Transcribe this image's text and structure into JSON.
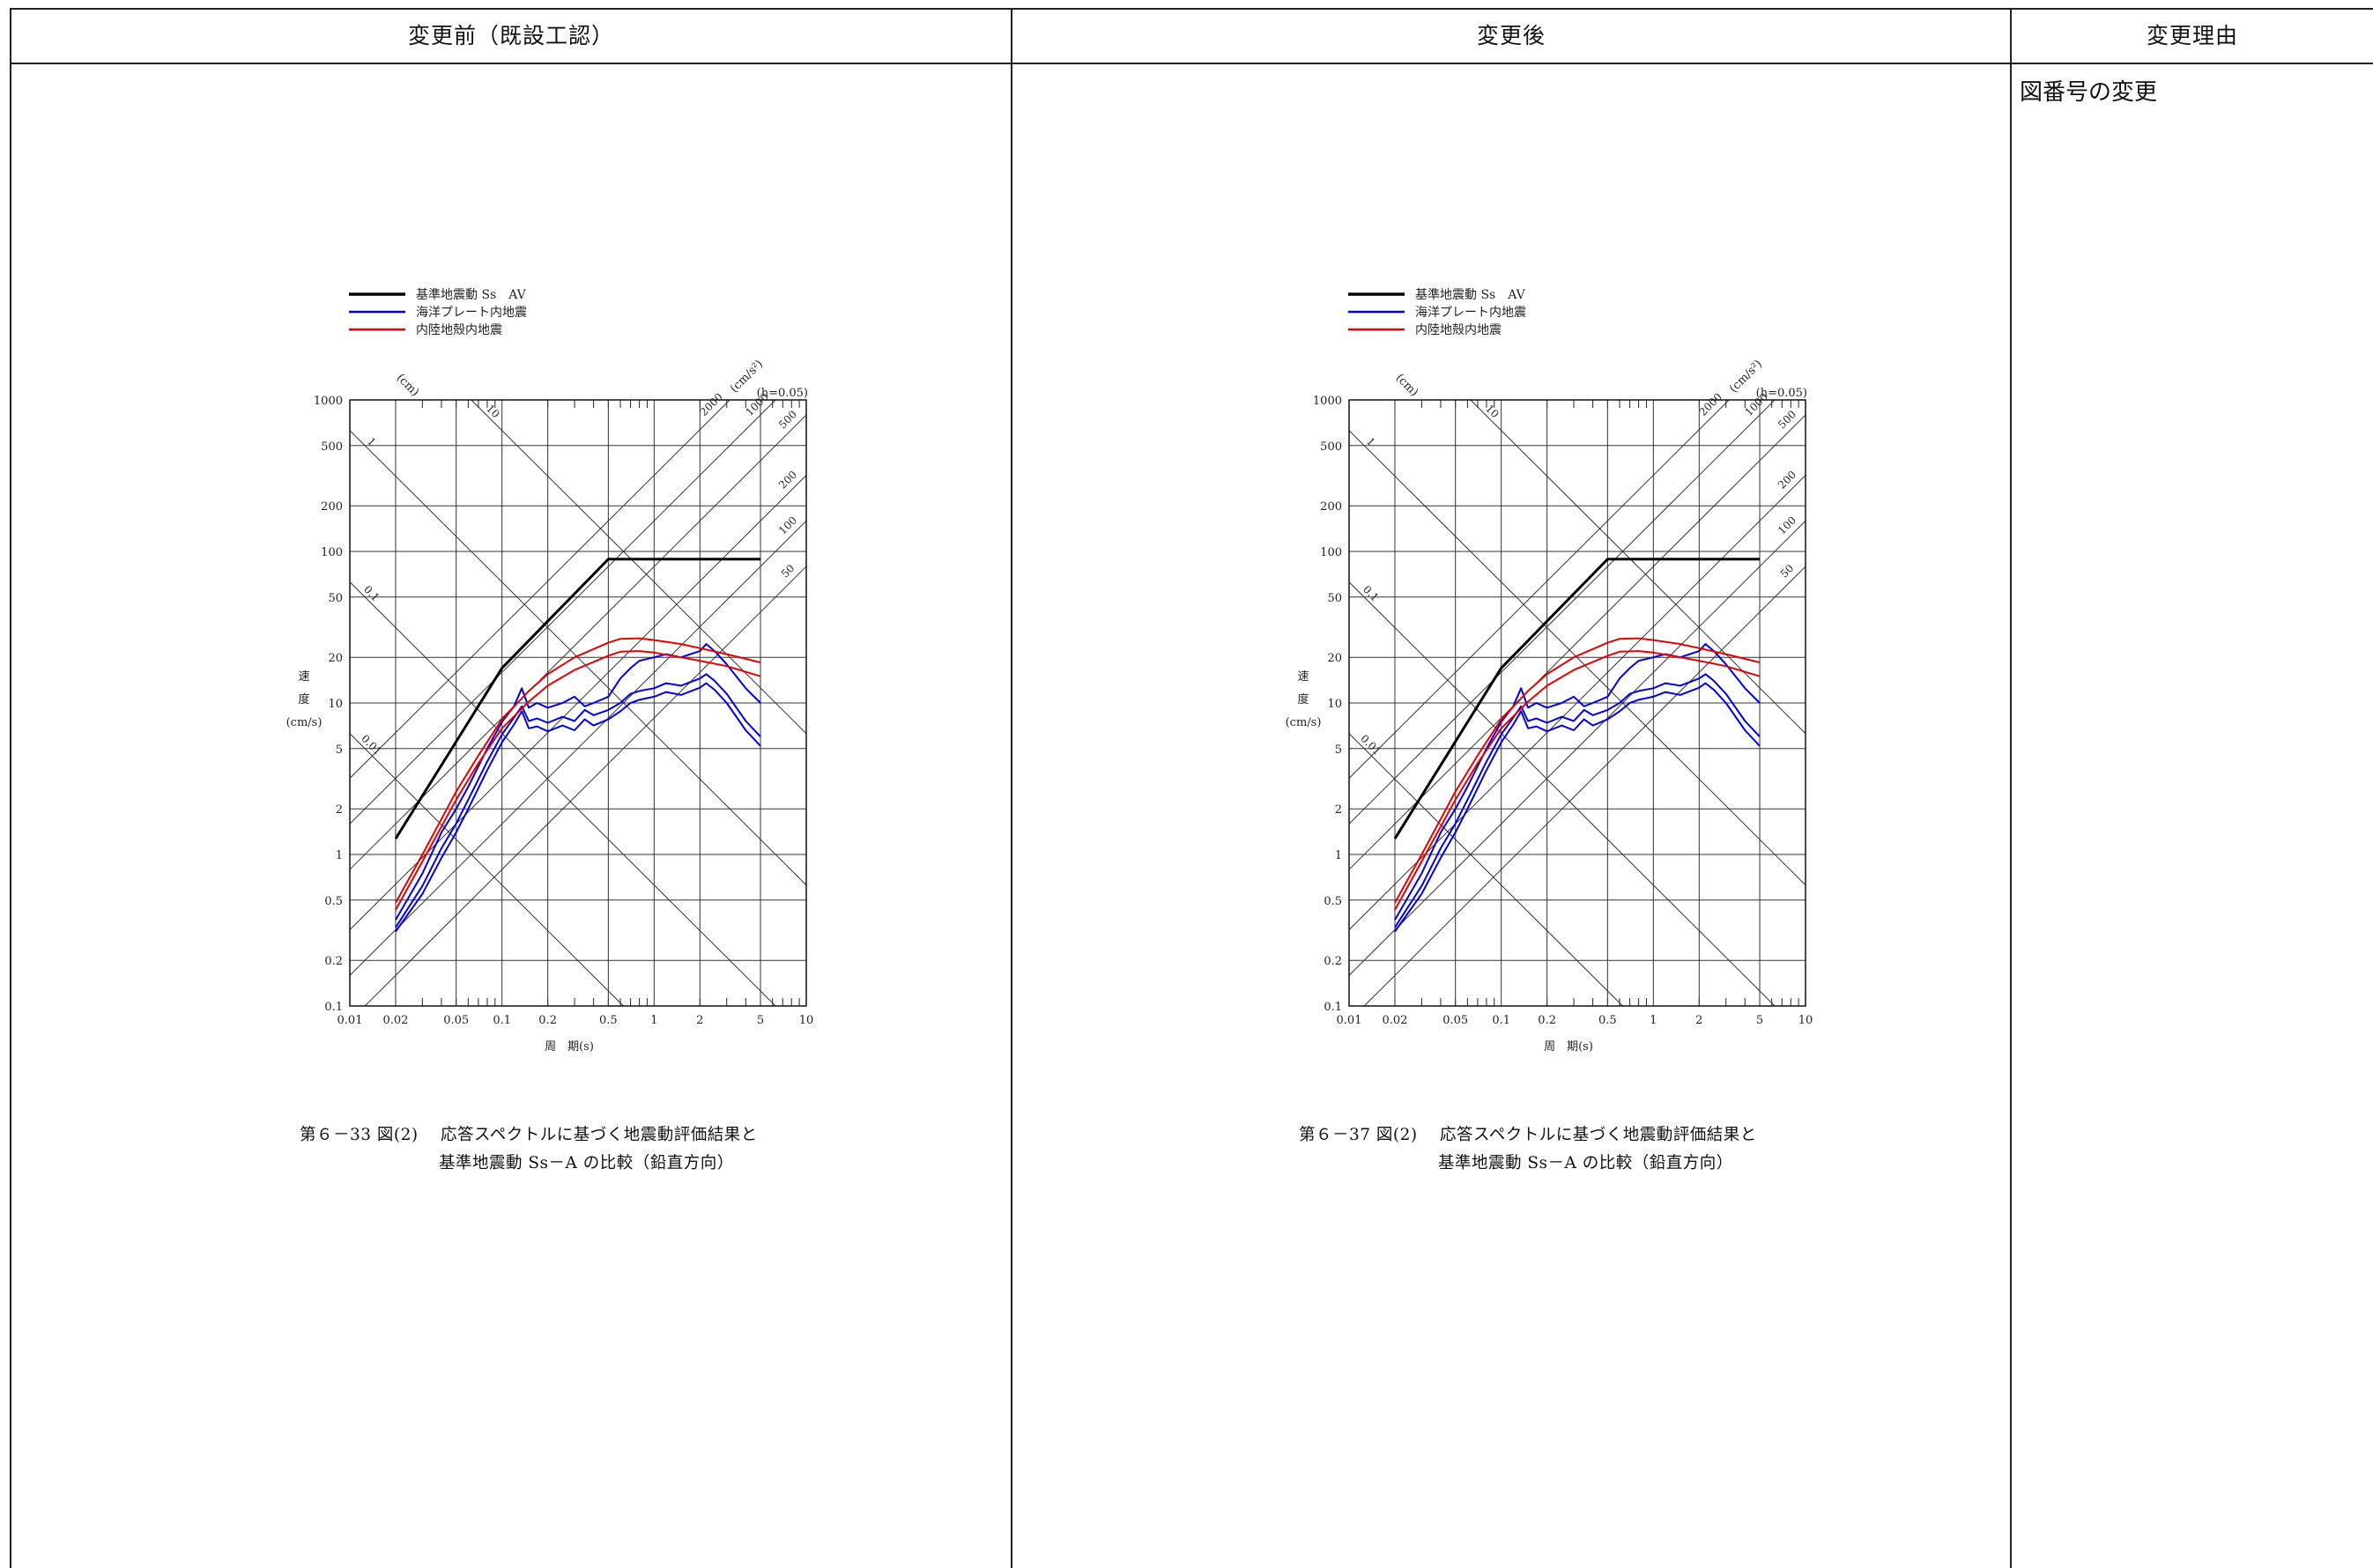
{
  "table": {
    "headers": {
      "before": "変更前（既設工認）",
      "after": "変更後",
      "reason": "変更理由"
    },
    "reason_text": "図番号の変更"
  },
  "panels": [
    {
      "caption_line1": "第６－33 図(2)　 応答スペクトルに基づく地震動評価結果と",
      "caption_line2": "基準地震動 Ss－A の比較（鉛直方向）"
    },
    {
      "caption_line1": "第６－37 図(2)　 応答スペクトルに基づく地震動評価結果と",
      "caption_line2": "基準地震動 Ss－A の比較（鉛直方向）"
    }
  ],
  "chart_data": {
    "type": "line",
    "xscale": "log",
    "yscale": "log",
    "xlim": [
      0.01,
      10
    ],
    "ylim": [
      0.1,
      1000
    ],
    "xlabel": "周　期(s)",
    "ylabel_chars": [
      "速",
      "度"
    ],
    "ylabel_unit": "(cm/s)",
    "damping": "(h=0.05)",
    "disp_unit": "(cm)",
    "accel_unit": "(cm/s²)",
    "x_ticks": [
      "0.01",
      "0.02",
      "0.05",
      "0.1",
      "0.2",
      "0.5",
      "1",
      "2",
      "5",
      "10"
    ],
    "x_tick_values": [
      0.01,
      0.02,
      0.05,
      0.1,
      0.2,
      0.5,
      1,
      2,
      5,
      10
    ],
    "y_ticks": [
      "0.1",
      "0.2",
      "0.5",
      "1",
      "2",
      "5",
      "10",
      "20",
      "50",
      "100",
      "200",
      "500",
      "1000"
    ],
    "y_tick_values": [
      0.1,
      0.2,
      0.5,
      1,
      2,
      5,
      10,
      20,
      50,
      100,
      200,
      500,
      1000
    ],
    "disp_lines": [
      {
        "label": "0.01",
        "value": 0.01
      },
      {
        "label": "0.1",
        "value": 0.1
      },
      {
        "label": "1",
        "value": 1
      },
      {
        "label": "10",
        "value": 10
      }
    ],
    "accel_lines": [
      {
        "label": "50",
        "value": 50
      },
      {
        "label": "100",
        "value": 100
      },
      {
        "label": "200",
        "value": 200
      },
      {
        "label": "500",
        "value": 500
      },
      {
        "label": "1000",
        "value": 1000
      },
      {
        "label": "2000",
        "value": 2000
      }
    ],
    "legend": {
      "position": "top-left"
    },
    "series": [
      {
        "name": "基準地震動 Ss　AV",
        "color": "#000000",
        "width": 3,
        "lines": [
          [
            [
              0.02,
              1.27
            ],
            [
              0.1,
              17
            ],
            [
              0.5,
              89
            ],
            [
              5,
              89
            ]
          ]
        ]
      },
      {
        "name": "海洋プレート内地震",
        "color": "#0000e6",
        "width": 2,
        "lines": [
          [
            [
              0.02,
              0.37
            ],
            [
              0.03,
              0.75
            ],
            [
              0.04,
              1.4
            ],
            [
              0.05,
              2.0
            ],
            [
              0.06,
              2.8
            ],
            [
              0.08,
              5.0
            ],
            [
              0.1,
              7.5
            ],
            [
              0.12,
              9.5
            ],
            [
              0.135,
              12.5
            ],
            [
              0.15,
              9.3
            ],
            [
              0.17,
              10
            ],
            [
              0.2,
              9.3
            ],
            [
              0.25,
              10
            ],
            [
              0.3,
              11
            ],
            [
              0.35,
              9.5
            ],
            [
              0.4,
              10
            ],
            [
              0.5,
              11
            ],
            [
              0.6,
              14.5
            ],
            [
              0.7,
              17
            ],
            [
              0.8,
              19
            ],
            [
              1,
              20
            ],
            [
              1.2,
              21
            ],
            [
              1.5,
              20
            ],
            [
              2,
              22
            ],
            [
              2.2,
              24.5
            ],
            [
              2.5,
              22
            ],
            [
              3,
              18
            ],
            [
              4,
              12.5
            ],
            [
              5,
              10
            ]
          ],
          [
            [
              0.02,
              0.33
            ],
            [
              0.03,
              0.62
            ],
            [
              0.04,
              1.1
            ],
            [
              0.05,
              1.6
            ],
            [
              0.06,
              2.3
            ],
            [
              0.08,
              4.1
            ],
            [
              0.1,
              6.2
            ],
            [
              0.12,
              8.0
            ],
            [
              0.135,
              9.5
            ],
            [
              0.15,
              7.6
            ],
            [
              0.17,
              7.9
            ],
            [
              0.2,
              7.4
            ],
            [
              0.25,
              8.1
            ],
            [
              0.3,
              7.6
            ],
            [
              0.35,
              9.0
            ],
            [
              0.4,
              8.3
            ],
            [
              0.5,
              9.0
            ],
            [
              0.6,
              10
            ],
            [
              0.7,
              11.5
            ],
            [
              0.8,
              12
            ],
            [
              1,
              12.5
            ],
            [
              1.2,
              13.5
            ],
            [
              1.5,
              13
            ],
            [
              2,
              14.5
            ],
            [
              2.2,
              15.5
            ],
            [
              2.5,
              14
            ],
            [
              3,
              11.5
            ],
            [
              4,
              7.6
            ],
            [
              5,
              6.0
            ]
          ],
          [
            [
              0.02,
              0.31
            ],
            [
              0.03,
              0.55
            ],
            [
              0.04,
              0.95
            ],
            [
              0.05,
              1.4
            ],
            [
              0.06,
              2.0
            ],
            [
              0.08,
              3.6
            ],
            [
              0.1,
              5.5
            ],
            [
              0.12,
              7.2
            ],
            [
              0.135,
              8.8
            ],
            [
              0.15,
              6.8
            ],
            [
              0.17,
              7.0
            ],
            [
              0.2,
              6.5
            ],
            [
              0.25,
              7.1
            ],
            [
              0.3,
              6.6
            ],
            [
              0.35,
              7.8
            ],
            [
              0.4,
              7.1
            ],
            [
              0.5,
              7.8
            ],
            [
              0.6,
              8.8
            ],
            [
              0.7,
              10
            ],
            [
              0.8,
              10.5
            ],
            [
              1,
              11
            ],
            [
              1.2,
              11.8
            ],
            [
              1.5,
              11.3
            ],
            [
              2,
              12.6
            ],
            [
              2.2,
              13.5
            ],
            [
              2.5,
              12.2
            ],
            [
              3,
              10
            ],
            [
              4,
              6.6
            ],
            [
              5,
              5.2
            ]
          ]
        ]
      },
      {
        "name": "内陸地殻内地震",
        "color": "#e60000",
        "width": 2,
        "lines": [
          [
            [
              0.02,
              0.48
            ],
            [
              0.03,
              1.0
            ],
            [
              0.05,
              2.6
            ],
            [
              0.07,
              4.5
            ],
            [
              0.1,
              7.8
            ],
            [
              0.15,
              12
            ],
            [
              0.2,
              15.5
            ],
            [
              0.3,
              20
            ],
            [
              0.5,
              25
            ],
            [
              0.6,
              26.5
            ],
            [
              0.8,
              26.7
            ],
            [
              1,
              26
            ],
            [
              1.5,
              24.5
            ],
            [
              2,
              23
            ],
            [
              3,
              21
            ],
            [
              5,
              18.5
            ]
          ],
          [
            [
              0.02,
              0.43
            ],
            [
              0.03,
              0.9
            ],
            [
              0.05,
              2.3
            ],
            [
              0.07,
              4.0
            ],
            [
              0.1,
              6.8
            ],
            [
              0.15,
              10.2
            ],
            [
              0.2,
              13
            ],
            [
              0.3,
              16.5
            ],
            [
              0.5,
              20.5
            ],
            [
              0.6,
              21.8
            ],
            [
              0.8,
              22
            ],
            [
              1,
              21.5
            ],
            [
              1.5,
              20
            ],
            [
              2,
              19
            ],
            [
              3,
              17.5
            ],
            [
              5,
              15
            ]
          ]
        ]
      }
    ]
  }
}
